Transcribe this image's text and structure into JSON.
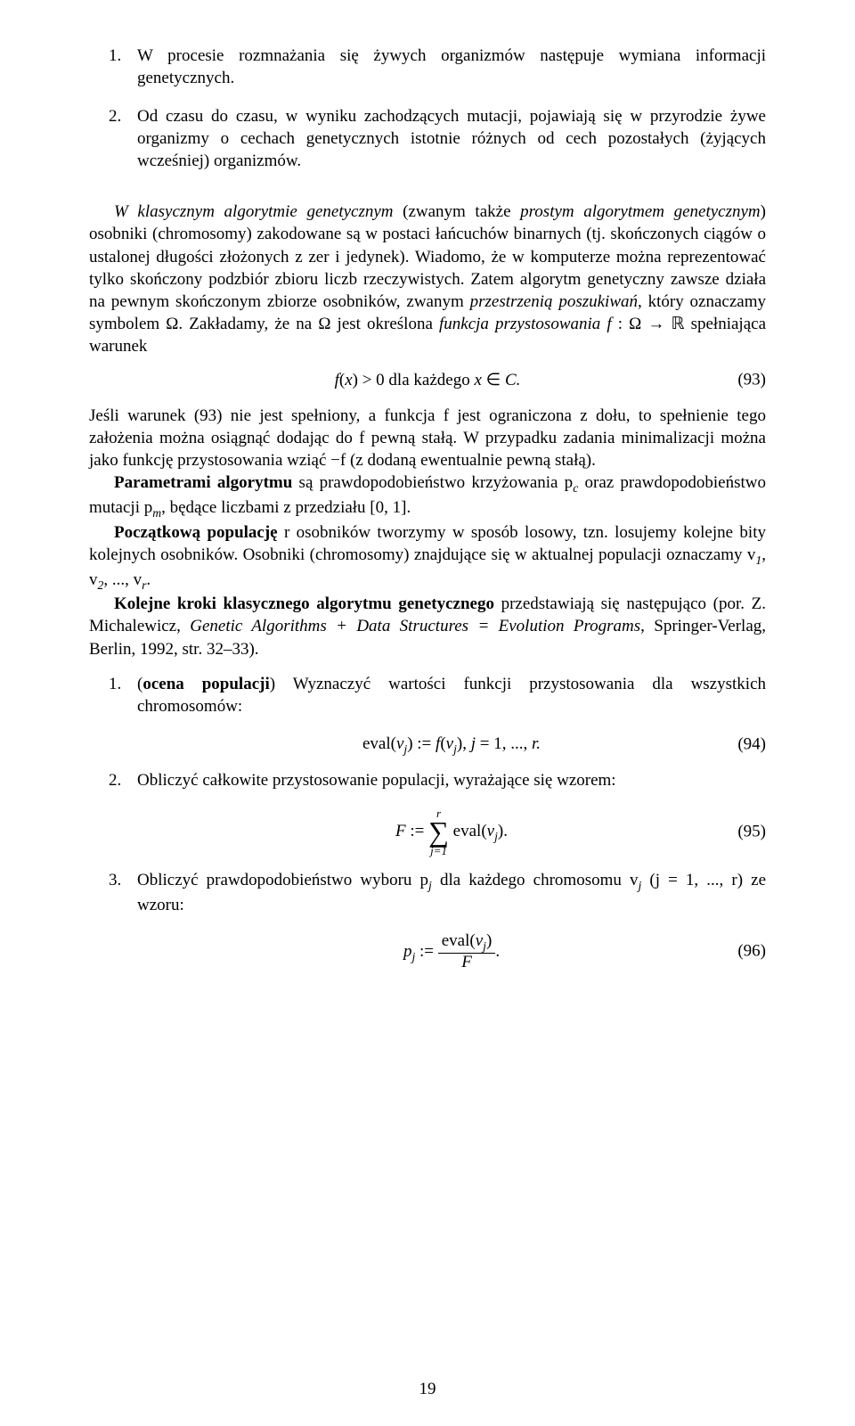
{
  "top_list": {
    "item1": {
      "num": "1.",
      "text": "W procesie rozmnażania się żywych organizmów następuje wymiana informacji genetycznych."
    },
    "item2": {
      "num": "2.",
      "text": "Od czasu do czasu, w wyniku zachodzących mutacji, pojawiają się w przyrodzie żywe organizmy o cechach genetycznych istotnie różnych od cech pozostałych (żyjących wcześniej) organizmów."
    }
  },
  "p1": {
    "s1a": "W klasycznym algorytmie genetycznym",
    "s1b": " (zwanym także ",
    "s1c": "prostym algorytmem genetycznym",
    "s1d": ") osobniki (chromosomy) zakodowane są w postaci łańcuchów binarnych (tj. skończonych ciągów o ustalonej długości złożonych z zer i jedynek). Wiadomo, że w komputerze można reprezentować tylko skończony podzbiór zbioru liczb rzeczywistych. Zatem algorytm genetyczny zawsze działa na pewnym skończonym zbiorze osobników, zwanym ",
    "s1e": "przestrzenią poszukiwań",
    "s1f": ", który oznaczamy symbolem Ω. Zakładamy, że na Ω jest określona ",
    "s1g": "funkcja przystosowania f ",
    "s1h": ": Ω → ℝ spełniająca warunek"
  },
  "eq93": {
    "body_a": "f",
    "body_b": "(",
    "body_c": "x",
    "body_d": ") > 0 dla każdego ",
    "body_e": "x",
    "body_f": " ∈ ",
    "body_g": "C.",
    "num": "(93)"
  },
  "p2": "Jeśli warunek (93) nie jest spełniony, a funkcja f jest ograniczona z dołu, to spełnienie tego założenia można osiągnąć dodając do f pewną stałą. W przypadku zadania minimalizacji można jako funkcję przystosowania wziąć −f (z dodaną ewentualnie pewną stałą).",
  "p3": {
    "a": "Parametrami algorytmu",
    "b": " są prawdopodobieństwo krzyżowania p",
    "b_sub": "c",
    "c": " oraz prawdopodobieństwo mutacji p",
    "c_sub": "m",
    "d": ", będące liczbami z przedziału [0, 1]."
  },
  "p4": {
    "a": "Początkową populację",
    "b": " r osobników tworzymy w sposób losowy, tzn. losujemy kolejne bity kolejnych osobników. Osobniki (chromosomy) znajdujące się w aktualnej populacji oznaczamy v",
    "s1": "1",
    "c": ", v",
    "s2": "2",
    "d": ", ..., v",
    "s3": "r",
    "e": "."
  },
  "p5": {
    "a": "Kolejne kroki klasycznego algorytmu genetycznego",
    "b": " przedstawiają się następująco (por.  Z. Michalewicz, ",
    "c": "Genetic Algorithms + Data Structures = Evolution Programs",
    "d": ", Springer-Verlag, Berlin, 1992, str. 32–33)."
  },
  "steps": {
    "s1": {
      "num": "1.",
      "a": "(",
      "b": "ocena populacji",
      "c": ") Wyznaczyć wartości funkcji przystosowania dla wszystkich chromosomów:"
    },
    "eq94": {
      "a": "eval(",
      "b": "v",
      "sub_j": "j",
      "c": ") := ",
      "d": "f",
      "e": "(",
      "f": "v",
      "g": "),    ",
      "h": "j",
      "i": " = 1, ..., ",
      "j": "r.",
      "num": "(94)"
    },
    "s2": {
      "num": "2.",
      "text": "Obliczyć całkowite przystosowanie populacji, wyrażające się wzorem:"
    },
    "eq95": {
      "lhs": "F",
      "assign": " := ",
      "sum_top": "r",
      "sum_bot": "j=1",
      "body_a": " eval(",
      "body_b": "v",
      "sub_j": "j",
      "body_c": ").",
      "num": "(95)"
    },
    "s3": {
      "num": "3.",
      "a": "Obliczyć prawdopodobieństwo wyboru p",
      "sub_j": "j",
      "b": " dla każdego chromosomu v",
      "sub_j2": "j",
      "c": " (j = 1, ..., r) ze wzoru:"
    },
    "eq96": {
      "lhs": "p",
      "sub_j": "j",
      "assign": " := ",
      "frac_top_a": "eval(",
      "frac_top_b": "v",
      "frac_top_sub": "j",
      "frac_top_c": ")",
      "frac_bot": "F",
      "tail": ".",
      "num": "(96)"
    }
  },
  "page_number": "19"
}
